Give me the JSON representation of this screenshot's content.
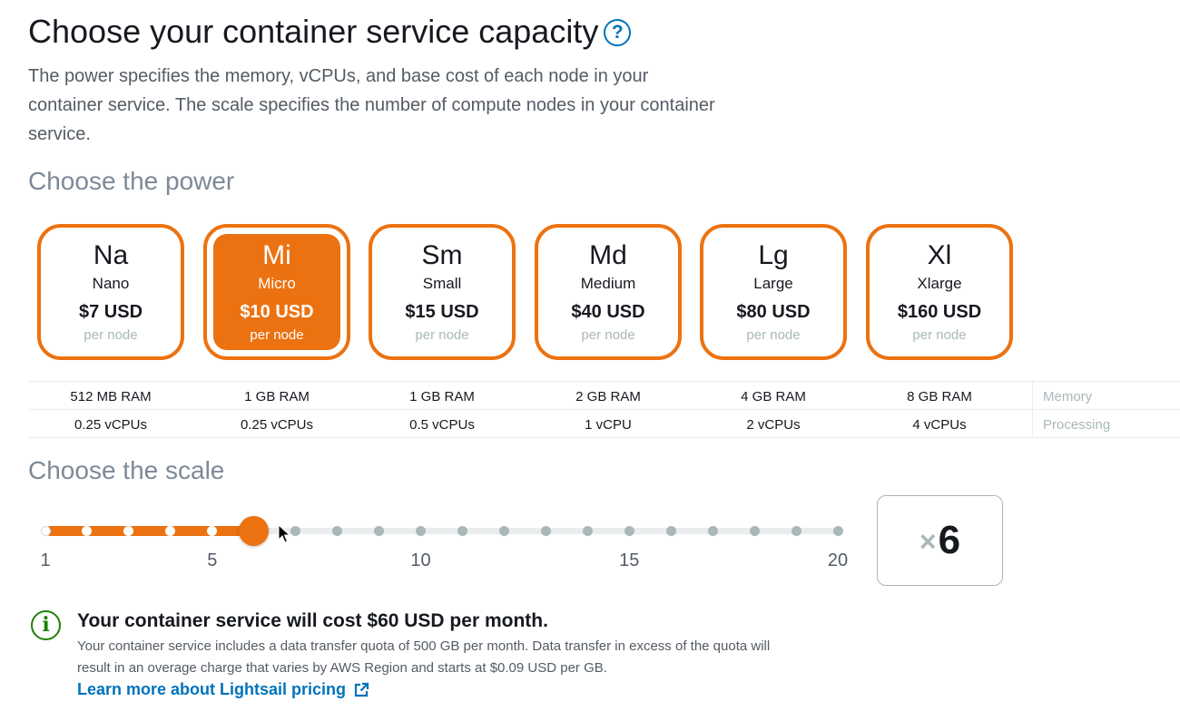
{
  "header": {
    "title": "Choose your container service capacity",
    "help_glyph": "?",
    "description": "The power specifies the memory, vCPUs, and base cost of each node in your container service. The scale specifies the number of compute nodes in your container service."
  },
  "power": {
    "title": "Choose the power",
    "selected_index": 1,
    "options": [
      {
        "abbr": "Na",
        "name": "Nano",
        "price": "$7 USD",
        "per": "per node",
        "memory": "512 MB RAM",
        "vcpu": "0.25 vCPUs"
      },
      {
        "abbr": "Mi",
        "name": "Micro",
        "price": "$10 USD",
        "per": "per node",
        "memory": "1 GB RAM",
        "vcpu": "0.25 vCPUs"
      },
      {
        "abbr": "Sm",
        "name": "Small",
        "price": "$15 USD",
        "per": "per node",
        "memory": "1 GB RAM",
        "vcpu": "0.5 vCPUs"
      },
      {
        "abbr": "Md",
        "name": "Medium",
        "price": "$40 USD",
        "per": "per node",
        "memory": "2 GB RAM",
        "vcpu": "1 vCPU"
      },
      {
        "abbr": "Lg",
        "name": "Large",
        "price": "$80 USD",
        "per": "per node",
        "memory": "4 GB RAM",
        "vcpu": "2 vCPUs"
      },
      {
        "abbr": "Xl",
        "name": "Xlarge",
        "price": "$160 USD",
        "per": "per node",
        "memory": "8 GB RAM",
        "vcpu": "4 vCPUs"
      }
    ],
    "spec_labels": {
      "memory": "Memory",
      "processing": "Processing"
    }
  },
  "scale": {
    "title": "Choose the scale",
    "min": 1,
    "max": 20,
    "value": 6,
    "labels": [
      "1",
      "5",
      "10",
      "15",
      "20"
    ],
    "multiplier_prefix": "×",
    "multiplier_value": "6"
  },
  "cost": {
    "info_glyph": "i",
    "title": "Your container service will cost $60 USD per month.",
    "description": "Your container service includes a data transfer quota of 500 GB per month. Data transfer in excess of the quota will result in an overage charge that varies by AWS Region and starts at $0.09 USD per GB.",
    "link": "Learn more about Lightsail pricing"
  },
  "colors": {
    "accent": "#ec7211",
    "link": "#0073bb",
    "success": "#1d8102"
  }
}
